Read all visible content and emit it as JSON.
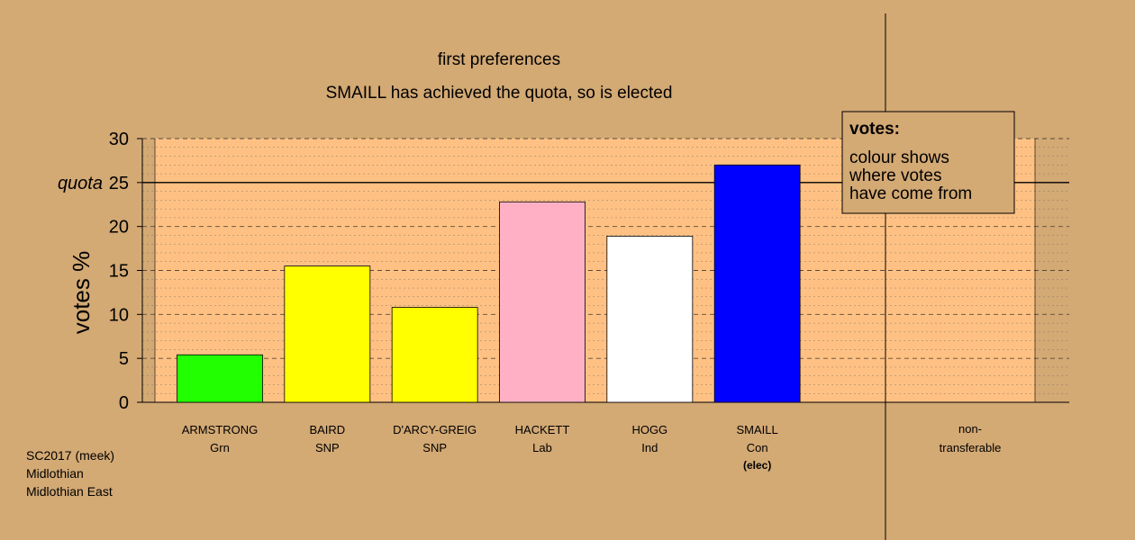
{
  "chart_data": {
    "type": "bar",
    "title": "first preferences",
    "subtitle": "SMAILL has achieved the quota, so is elected",
    "ylabel": "votes %",
    "ylim": [
      0,
      30
    ],
    "yticks": [
      0,
      5,
      10,
      15,
      20,
      25,
      30
    ],
    "quota": 25,
    "quota_label": "quota",
    "grid": true,
    "candidates": [
      {
        "name": "ARMSTRONG",
        "party": "Grn",
        "value": 5.4,
        "color": "#22ff00",
        "note": ""
      },
      {
        "name": "BAIRD",
        "party": "SNP",
        "value": 15.5,
        "color": "#ffff00",
        "note": ""
      },
      {
        "name": "D'ARCY-GREIG",
        "party": "SNP",
        "value": 10.8,
        "color": "#ffff00",
        "note": ""
      },
      {
        "name": "HACKETT",
        "party": "Lab",
        "value": 22.8,
        "color": "#ffb0c4",
        "note": ""
      },
      {
        "name": "HOGG",
        "party": "Ind",
        "value": 18.9,
        "color": "#ffffff",
        "note": ""
      },
      {
        "name": "SMAILL",
        "party": "Con",
        "value": 27.0,
        "color": "#0000ff",
        "note": "(elec)"
      }
    ],
    "nontransferable": {
      "line1": "non-",
      "line2": "transferable",
      "value": 0
    },
    "legend": {
      "title": "votes:",
      "lines": [
        "colour shows",
        "where votes",
        "have come from"
      ],
      "placement": "top-right"
    }
  },
  "footer": {
    "line1": "SC2017 (meek)",
    "line2": "Midlothian",
    "line3": "Midlothian East"
  },
  "colors": {
    "background": "#d3a974",
    "plot_area": "#ffc183"
  }
}
